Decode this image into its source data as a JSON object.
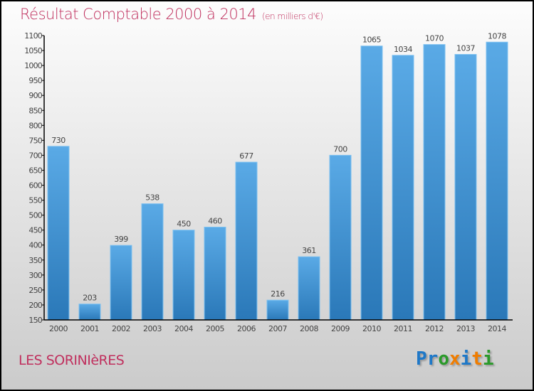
{
  "chart_data": {
    "type": "bar",
    "title": "Résultat Comptable 2000 à 2014",
    "subtitle": "(en milliers d'€)",
    "categories": [
      "2000",
      "2001",
      "2002",
      "2003",
      "2004",
      "2005",
      "2006",
      "2007",
      "2008",
      "2009",
      "2010",
      "2011",
      "2012",
      "2013",
      "2014"
    ],
    "values": [
      730,
      203,
      399,
      538,
      450,
      460,
      677,
      216,
      361,
      700,
      1065,
      1034,
      1070,
      1037,
      1078
    ],
    "ylim": [
      150,
      1100
    ],
    "yticks": [
      150,
      200,
      250,
      300,
      350,
      400,
      450,
      500,
      550,
      600,
      650,
      700,
      750,
      800,
      850,
      900,
      950,
      1000,
      1050,
      1100
    ],
    "xlabel": "",
    "ylabel": "",
    "grid": false,
    "bar_color": "#3a8fd0"
  },
  "town": "LES SORINIèRES",
  "logo": {
    "letters": [
      "P",
      "r",
      "o",
      "x",
      "i",
      "t",
      "i"
    ],
    "colors": [
      "#1e78c8",
      "#1e78c8",
      "#2a9a2a",
      "#f07d00",
      "#1e78c8",
      "#f07d00",
      "#2a9a2a"
    ]
  }
}
